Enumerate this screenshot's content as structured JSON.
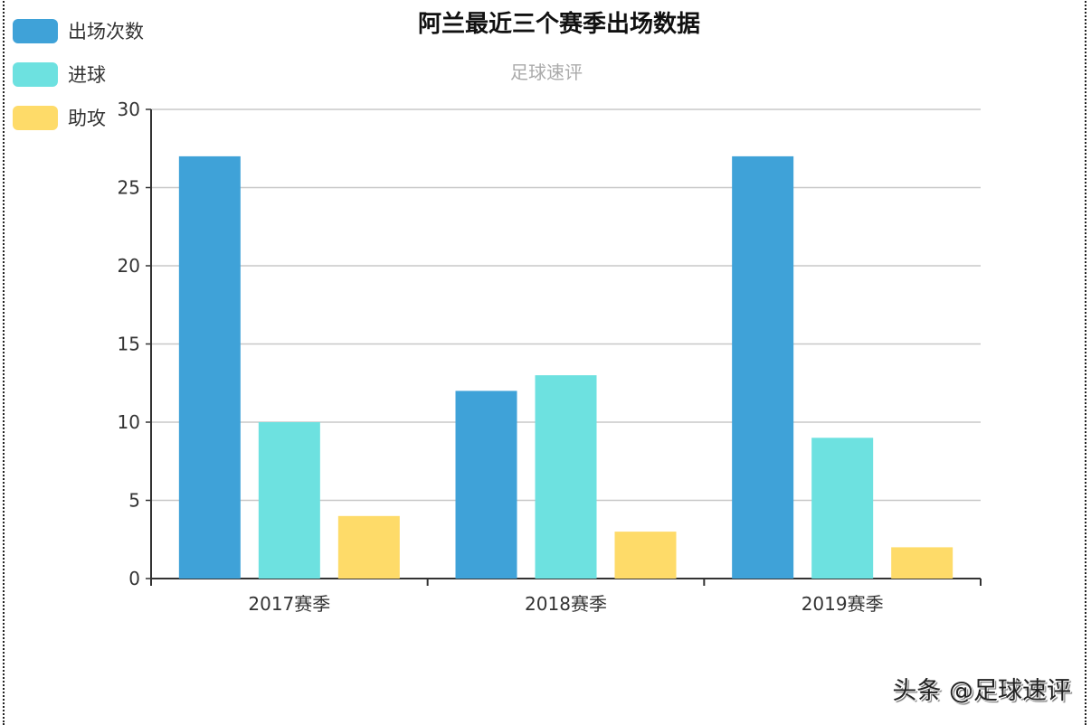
{
  "title": "阿兰最近三个赛季出场数据",
  "subtitle": "足球速评",
  "watermark": "头条 @足球速评",
  "legend": [
    {
      "label": "出场次数",
      "color": "#3fa2d8"
    },
    {
      "label": "进球",
      "color": "#6de1e0"
    },
    {
      "label": "助攻",
      "color": "#fedb69"
    }
  ],
  "chart_data": {
    "type": "bar",
    "title": "阿兰最近三个赛季出场数据",
    "subtitle": "足球速评",
    "categories": [
      "2017赛季",
      "2018赛季",
      "2019赛季"
    ],
    "series": [
      {
        "name": "出场次数",
        "values": [
          27,
          12,
          27
        ],
        "color": "#3fa2d8"
      },
      {
        "name": "进球",
        "values": [
          10,
          13,
          9
        ],
        "color": "#6de1e0"
      },
      {
        "name": "助攻",
        "values": [
          4,
          3,
          2
        ],
        "color": "#fedb69"
      }
    ],
    "xlabel": "",
    "ylabel": "",
    "ylim": [
      0,
      30
    ],
    "yticks": [
      0,
      5,
      10,
      15,
      20,
      25,
      30
    ],
    "grid": true,
    "legend_position": "top-left"
  }
}
